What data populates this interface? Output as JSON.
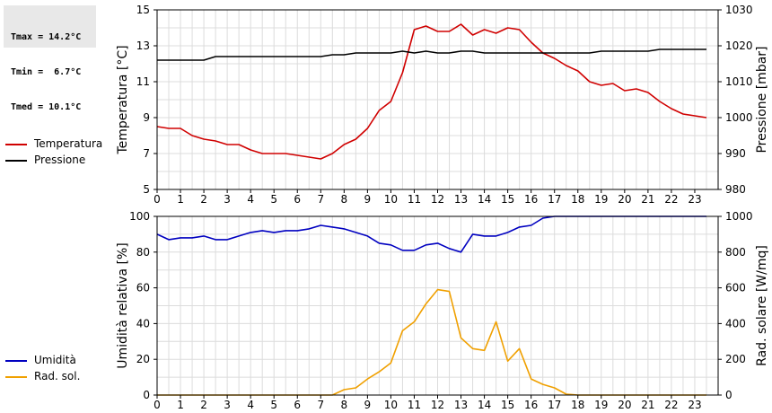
{
  "stats": {
    "tmax": "Tmax = 14.2°C",
    "tmin": "Tmin =  6.7°C",
    "tmed": "Tmed = 10.1°C"
  },
  "chart_data": [
    {
      "type": "line",
      "x_ticks": [
        "0",
        "1",
        "2",
        "3",
        "4",
        "5",
        "6",
        "7",
        "8",
        "9",
        "10",
        "11",
        "12",
        "13",
        "14",
        "15",
        "16",
        "17",
        "18",
        "19",
        "20",
        "21",
        "22",
        "23"
      ],
      "xlim": [
        0,
        24
      ],
      "grid": true,
      "left_axis": {
        "label": "Temperatura [°C]",
        "ylim": [
          5,
          15
        ],
        "ticks": [
          5,
          7,
          9,
          11,
          13,
          15
        ]
      },
      "right_axis": {
        "label": "Pressione [mbar]",
        "ylim": [
          980,
          1030
        ],
        "ticks": [
          980,
          990,
          1000,
          1010,
          1020,
          1030
        ]
      },
      "series": [
        {
          "name": "Temperatura",
          "color": "#d00000",
          "axis": "left",
          "points": [
            [
              0,
              8.5
            ],
            [
              0.5,
              8.4
            ],
            [
              1,
              8.4
            ],
            [
              1.5,
              8.0
            ],
            [
              2,
              7.8
            ],
            [
              2.5,
              7.7
            ],
            [
              3,
              7.5
            ],
            [
              3.5,
              7.5
            ],
            [
              4,
              7.2
            ],
            [
              4.5,
              7.0
            ],
            [
              5,
              7.0
            ],
            [
              5.5,
              7.0
            ],
            [
              6,
              6.9
            ],
            [
              6.5,
              6.8
            ],
            [
              7,
              6.7
            ],
            [
              7.5,
              7.0
            ],
            [
              8,
              7.5
            ],
            [
              8.5,
              7.8
            ],
            [
              9,
              8.4
            ],
            [
              9.5,
              9.4
            ],
            [
              10,
              9.9
            ],
            [
              10.5,
              11.5
            ],
            [
              11,
              13.9
            ],
            [
              11.5,
              14.1
            ],
            [
              12,
              13.8
            ],
            [
              12.5,
              13.8
            ],
            [
              13,
              14.2
            ],
            [
              13.5,
              13.6
            ],
            [
              14,
              13.9
            ],
            [
              14.5,
              13.7
            ],
            [
              15,
              14.0
            ],
            [
              15.5,
              13.9
            ],
            [
              16,
              13.2
            ],
            [
              16.5,
              12.6
            ],
            [
              17,
              12.3
            ],
            [
              17.5,
              11.9
            ],
            [
              18,
              11.6
            ],
            [
              18.5,
              11.0
            ],
            [
              19,
              10.8
            ],
            [
              19.5,
              10.9
            ],
            [
              20,
              10.5
            ],
            [
              20.5,
              10.6
            ],
            [
              21,
              10.4
            ],
            [
              21.5,
              9.9
            ],
            [
              22,
              9.5
            ],
            [
              22.5,
              9.2
            ],
            [
              23,
              9.1
            ],
            [
              23.5,
              9.0
            ]
          ]
        },
        {
          "name": "Pressione",
          "color": "#000000",
          "axis": "right",
          "points": [
            [
              0,
              1016
            ],
            [
              0.5,
              1016
            ],
            [
              1,
              1016
            ],
            [
              1.5,
              1016
            ],
            [
              2,
              1016
            ],
            [
              2.5,
              1017
            ],
            [
              3,
              1017
            ],
            [
              3.5,
              1017
            ],
            [
              4,
              1017
            ],
            [
              4.5,
              1017
            ],
            [
              5,
              1017
            ],
            [
              5.5,
              1017
            ],
            [
              6,
              1017
            ],
            [
              6.5,
              1017
            ],
            [
              7,
              1017
            ],
            [
              7.5,
              1017.5
            ],
            [
              8,
              1017.5
            ],
            [
              8.5,
              1018
            ],
            [
              9,
              1018
            ],
            [
              9.5,
              1018
            ],
            [
              10,
              1018
            ],
            [
              10.5,
              1018.5
            ],
            [
              11,
              1018
            ],
            [
              11.5,
              1018.5
            ],
            [
              12,
              1018
            ],
            [
              12.5,
              1018
            ],
            [
              13,
              1018.5
            ],
            [
              13.5,
              1018.5
            ],
            [
              14,
              1018
            ],
            [
              14.5,
              1018
            ],
            [
              15,
              1018
            ],
            [
              15.5,
              1018
            ],
            [
              16,
              1018
            ],
            [
              16.5,
              1018
            ],
            [
              17,
              1018
            ],
            [
              17.5,
              1018
            ],
            [
              18,
              1018
            ],
            [
              18.5,
              1018
            ],
            [
              19,
              1018.5
            ],
            [
              19.5,
              1018.5
            ],
            [
              20,
              1018.5
            ],
            [
              20.5,
              1018.5
            ],
            [
              21,
              1018.5
            ],
            [
              21.5,
              1019
            ],
            [
              22,
              1019
            ],
            [
              22.5,
              1019
            ],
            [
              23,
              1019
            ],
            [
              23.5,
              1019
            ]
          ]
        }
      ]
    },
    {
      "type": "line",
      "x_ticks": [
        "0",
        "1",
        "2",
        "3",
        "4",
        "5",
        "6",
        "7",
        "8",
        "9",
        "10",
        "11",
        "12",
        "13",
        "14",
        "15",
        "16",
        "17",
        "18",
        "19",
        "20",
        "21",
        "22",
        "23"
      ],
      "xlim": [
        0,
        24
      ],
      "grid": true,
      "left_axis": {
        "label": "Umidità relativa [%]",
        "ylim": [
          0,
          100
        ],
        "ticks": [
          0,
          20,
          40,
          60,
          80,
          100
        ]
      },
      "right_axis": {
        "label": "Rad. solare [W/mq]",
        "ylim": [
          0,
          1000
        ],
        "ticks": [
          0,
          200,
          400,
          600,
          800,
          1000
        ]
      },
      "series": [
        {
          "name": "Umidità",
          "color": "#0000c0",
          "axis": "left",
          "points": [
            [
              0,
              90
            ],
            [
              0.5,
              87
            ],
            [
              1,
              88
            ],
            [
              1.5,
              88
            ],
            [
              2,
              89
            ],
            [
              2.5,
              87
            ],
            [
              3,
              87
            ],
            [
              3.5,
              89
            ],
            [
              4,
              91
            ],
            [
              4.5,
              92
            ],
            [
              5,
              91
            ],
            [
              5.5,
              92
            ],
            [
              6,
              92
            ],
            [
              6.5,
              93
            ],
            [
              7,
              95
            ],
            [
              7.5,
              94
            ],
            [
              8,
              93
            ],
            [
              8.5,
              91
            ],
            [
              9,
              89
            ],
            [
              9.5,
              85
            ],
            [
              10,
              84
            ],
            [
              10.5,
              81
            ],
            [
              11,
              81
            ],
            [
              11.5,
              84
            ],
            [
              12,
              85
            ],
            [
              12.5,
              82
            ],
            [
              13,
              80
            ],
            [
              13.5,
              90
            ],
            [
              14,
              89
            ],
            [
              14.5,
              89
            ],
            [
              15,
              91
            ],
            [
              15.5,
              94
            ],
            [
              16,
              95
            ],
            [
              16.5,
              99
            ],
            [
              17,
              100
            ],
            [
              17.5,
              100
            ],
            [
              18,
              100
            ],
            [
              18.5,
              100
            ],
            [
              19,
              100
            ],
            [
              19.5,
              100
            ],
            [
              20,
              100
            ],
            [
              20.5,
              100
            ],
            [
              21,
              100
            ],
            [
              21.5,
              100
            ],
            [
              22,
              100
            ],
            [
              22.5,
              100
            ],
            [
              23,
              100
            ],
            [
              23.5,
              100
            ]
          ]
        },
        {
          "name": "Rad. sol.",
          "color": "#f0a000",
          "axis": "right",
          "points": [
            [
              0,
              0
            ],
            [
              0.5,
              0
            ],
            [
              1,
              0
            ],
            [
              1.5,
              0
            ],
            [
              2,
              0
            ],
            [
              2.5,
              0
            ],
            [
              3,
              0
            ],
            [
              3.5,
              0
            ],
            [
              4,
              0
            ],
            [
              4.5,
              0
            ],
            [
              5,
              0
            ],
            [
              5.5,
              0
            ],
            [
              6,
              0
            ],
            [
              6.5,
              0
            ],
            [
              7,
              0
            ],
            [
              7.5,
              0
            ],
            [
              8,
              30
            ],
            [
              8.5,
              40
            ],
            [
              9,
              90
            ],
            [
              9.5,
              130
            ],
            [
              10,
              180
            ],
            [
              10.5,
              360
            ],
            [
              11,
              410
            ],
            [
              11.5,
              510
            ],
            [
              12,
              590
            ],
            [
              12.5,
              580
            ],
            [
              13,
              320
            ],
            [
              13.5,
              260
            ],
            [
              14,
              250
            ],
            [
              14.5,
              410
            ],
            [
              15,
              190
            ],
            [
              15.5,
              260
            ],
            [
              16,
              90
            ],
            [
              16.5,
              60
            ],
            [
              17,
              40
            ],
            [
              17.5,
              5
            ],
            [
              18,
              0
            ],
            [
              18.5,
              0
            ],
            [
              19,
              0
            ],
            [
              19.5,
              0
            ],
            [
              20,
              0
            ],
            [
              20.5,
              0
            ],
            [
              21,
              0
            ],
            [
              21.5,
              0
            ],
            [
              22,
              0
            ],
            [
              22.5,
              0
            ],
            [
              23,
              0
            ],
            [
              23.5,
              0
            ]
          ]
        }
      ]
    }
  ]
}
